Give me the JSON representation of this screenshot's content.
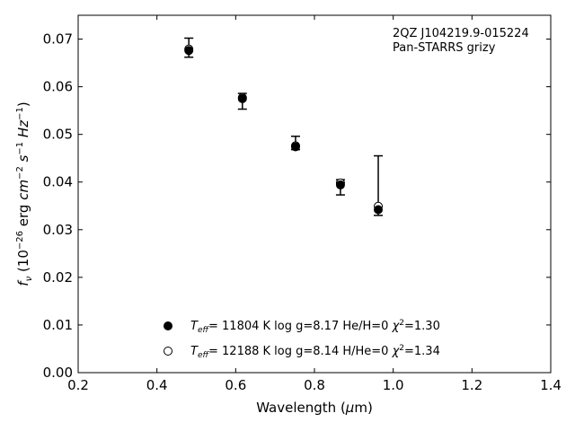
{
  "chart_data": {
    "type": "scatter",
    "annotation": [
      "2QZ J104219.9-015224",
      "Pan-STARRS grizy"
    ],
    "xlabel": {
      "main": "Wavelength (",
      "mu": "μ",
      "unit": "m)"
    },
    "ylabel": {
      "f": "f",
      "nu": "ν",
      "rest": " (10",
      "e1": "−26",
      "erg": " erg ",
      "cm": "cm",
      "e2": "−2",
      "s": " s",
      "e3": "−1",
      "hz": " Hz",
      "e4": "−1",
      "close": ")"
    },
    "xlim": [
      0.2,
      1.4
    ],
    "ylim": [
      0.0,
      0.075
    ],
    "x_ticks": [
      "0.2",
      "0.4",
      "0.6",
      "0.8",
      "1.0",
      "1.2",
      "1.4"
    ],
    "y_ticks": [
      "0.00",
      "0.01",
      "0.02",
      "0.03",
      "0.04",
      "0.05",
      "0.06",
      "0.07"
    ],
    "observed": {
      "x": [
        0.481,
        0.617,
        0.752,
        0.866,
        0.962
      ],
      "y": [
        0.0682,
        0.0578,
        0.0477,
        0.0398,
        0.0345
      ],
      "yerr_lo": [
        0.0662,
        0.0553,
        0.0468,
        0.0373,
        0.033
      ],
      "yerr_hi": [
        0.0702,
        0.0586,
        0.0496,
        0.0405,
        0.0455
      ]
    },
    "series": [
      {
        "marker": "filled-circle",
        "x": [
          0.481,
          0.617,
          0.752,
          0.866,
          0.962
        ],
        "y": [
          0.0676,
          0.0575,
          0.0474,
          0.0394,
          0.0342
        ],
        "legend": {
          "t": "T",
          "eff": "eff",
          "rest": "= 11804 K  log g=8.17  He/H=0  ",
          "chi": "χ",
          "sq": "2",
          "val": "=1.30"
        }
      },
      {
        "marker": "open-circle",
        "x": [
          0.481,
          0.617,
          0.752,
          0.866,
          0.962
        ],
        "y": [
          0.0679,
          0.0577,
          0.0476,
          0.0398,
          0.0349
        ],
        "legend": {
          "t": "T",
          "eff": "eff",
          "rest": "= 12188 K  log g=8.14  H/He=0  ",
          "chi": "χ",
          "sq": "2",
          "val": "=1.34"
        }
      }
    ],
    "legend_position": "lower-center",
    "grid": false
  }
}
